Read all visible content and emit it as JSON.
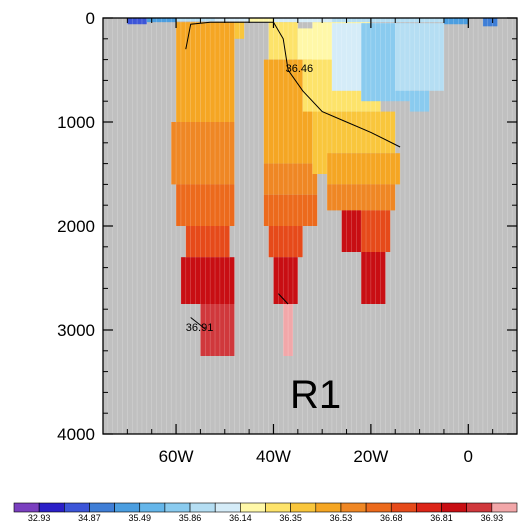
{
  "chart_data": {
    "type": "heatmap",
    "title": "",
    "xlabel": "",
    "ylabel": "",
    "xlim": [
      -75,
      10
    ],
    "ylim": [
      4000,
      0
    ],
    "y_reversed": true,
    "missing_color": "#c0c0c0",
    "x_ticks": [
      {
        "value": -60,
        "label": "60W"
      },
      {
        "value": -40,
        "label": "40W"
      },
      {
        "value": -20,
        "label": "20W"
      },
      {
        "value": 0,
        "label": "0"
      }
    ],
    "y_ticks": [
      {
        "value": 0,
        "label": "0"
      },
      {
        "value": 1000,
        "label": "1000"
      },
      {
        "value": 2000,
        "label": "2000"
      },
      {
        "value": 3000,
        "label": "3000"
      },
      {
        "value": 4000,
        "label": "4000"
      }
    ],
    "panel_label": "R1",
    "colorbar": {
      "colors": [
        "#7a3fbf",
        "#2b1fc8",
        "#3c55d8",
        "#3f7ed6",
        "#4b9ee0",
        "#65b6ea",
        "#8acbef",
        "#b5def3",
        "#d5ecf8",
        "#fff8a8",
        "#fde36a",
        "#f9c63c",
        "#f5a623",
        "#ef8724",
        "#ec6a1c",
        "#e64a1a",
        "#dc2518",
        "#c80e13",
        "#d0383c",
        "#f2a7a9"
      ],
      "labels": [
        "32.93",
        "34.87",
        "35.49",
        "35.86",
        "36.14",
        "36.35",
        "36.53",
        "36.68",
        "36.81",
        "36.93"
      ]
    },
    "contours": [
      {
        "level": 36.46,
        "label": "36.46"
      },
      {
        "level": 36.91,
        "label": "36.91"
      }
    ],
    "field": [
      {
        "lon": [
          -70,
          -66
        ],
        "depth": [
          0,
          60
        ],
        "color_index": 2
      },
      {
        "lon": [
          -66,
          -60
        ],
        "depth": [
          0,
          40
        ],
        "color_index": 4
      },
      {
        "lon": [
          -60,
          -52
        ],
        "depth": [
          0,
          30
        ],
        "color_index": 7
      },
      {
        "lon": [
          -52,
          -45
        ],
        "depth": [
          0,
          30
        ],
        "color_index": 8
      },
      {
        "lon": [
          -45,
          -40
        ],
        "depth": [
          0,
          40
        ],
        "color_index": 9
      },
      {
        "lon": [
          -40,
          -28
        ],
        "depth": [
          0,
          40
        ],
        "color_index": 8
      },
      {
        "lon": [
          -28,
          -5
        ],
        "depth": [
          0,
          40
        ],
        "color_index": 7
      },
      {
        "lon": [
          -5,
          0
        ],
        "depth": [
          0,
          60
        ],
        "color_index": 4
      },
      {
        "lon": [
          3,
          6
        ],
        "depth": [
          0,
          80
        ],
        "color_index": 3
      },
      {
        "lon": [
          -60,
          -55
        ],
        "depth": [
          40,
          1000
        ],
        "color_index": 12
      },
      {
        "lon": [
          -55,
          -48
        ],
        "depth": [
          40,
          1200
        ],
        "color_index": 12
      },
      {
        "lon": [
          -48,
          -46
        ],
        "depth": [
          40,
          200
        ],
        "color_index": 11
      },
      {
        "lon": [
          -61,
          -48
        ],
        "depth": [
          1000,
          1600
        ],
        "color_index": 13
      },
      {
        "lon": [
          -60,
          -48
        ],
        "depth": [
          1600,
          2000
        ],
        "color_index": 14
      },
      {
        "lon": [
          -58,
          -49
        ],
        "depth": [
          2000,
          2300
        ],
        "color_index": 15
      },
      {
        "lon": [
          -59,
          -48
        ],
        "depth": [
          2300,
          2750
        ],
        "color_index": 17
      },
      {
        "lon": [
          -55,
          -48
        ],
        "depth": [
          2750,
          3250
        ],
        "color_index": 18
      },
      {
        "lon": [
          -41,
          -35
        ],
        "depth": [
          40,
          400
        ],
        "color_index": 10
      },
      {
        "lon": [
          -35,
          -28
        ],
        "depth": [
          100,
          700
        ],
        "color_index": 9
      },
      {
        "lon": [
          -42,
          -32
        ],
        "depth": [
          400,
          1400
        ],
        "color_index": 12
      },
      {
        "lon": [
          -42,
          -31
        ],
        "depth": [
          1400,
          1700
        ],
        "color_index": 13
      },
      {
        "lon": [
          -42,
          -31
        ],
        "depth": [
          1700,
          2000
        ],
        "color_index": 14
      },
      {
        "lon": [
          -41,
          -34
        ],
        "depth": [
          2000,
          2300
        ],
        "color_index": 15
      },
      {
        "lon": [
          -40,
          -35
        ],
        "depth": [
          2300,
          2750
        ],
        "color_index": 17
      },
      {
        "lon": [
          -38,
          -36
        ],
        "depth": [
          2750,
          3250
        ],
        "color_index": 19
      },
      {
        "lon": [
          -32,
          -28
        ],
        "depth": [
          700,
          1500
        ],
        "color_index": 11
      },
      {
        "lon": [
          -28,
          -15
        ],
        "depth": [
          900,
          1300
        ],
        "color_index": 11
      },
      {
        "lon": [
          -29,
          -14
        ],
        "depth": [
          1300,
          1600
        ],
        "color_index": 12
      },
      {
        "lon": [
          -29,
          -15
        ],
        "depth": [
          1600,
          1850
        ],
        "color_index": 13
      },
      {
        "lon": [
          -26,
          -16
        ],
        "depth": [
          1850,
          2250
        ],
        "color_index": 15
      },
      {
        "lon": [
          -26,
          -22
        ],
        "depth": [
          1850,
          2250
        ],
        "color_index": 17
      },
      {
        "lon": [
          -22,
          -17
        ],
        "depth": [
          2250,
          2750
        ],
        "color_index": 17
      },
      {
        "lon": [
          -32,
          -20
        ],
        "depth": [
          40,
          400
        ],
        "color_index": 9
      },
      {
        "lon": [
          -34,
          -18
        ],
        "depth": [
          400,
          900
        ],
        "color_index": 10
      },
      {
        "lon": [
          -28,
          -15
        ],
        "depth": [
          50,
          700
        ],
        "color_index": 8
      },
      {
        "lon": [
          -22,
          -12
        ],
        "depth": [
          50,
          800
        ],
        "color_index": 6
      },
      {
        "lon": [
          -15,
          -5
        ],
        "depth": [
          50,
          700
        ],
        "color_index": 7
      },
      {
        "lon": [
          -12,
          -8
        ],
        "depth": [
          700,
          900
        ],
        "color_index": 6
      }
    ]
  }
}
